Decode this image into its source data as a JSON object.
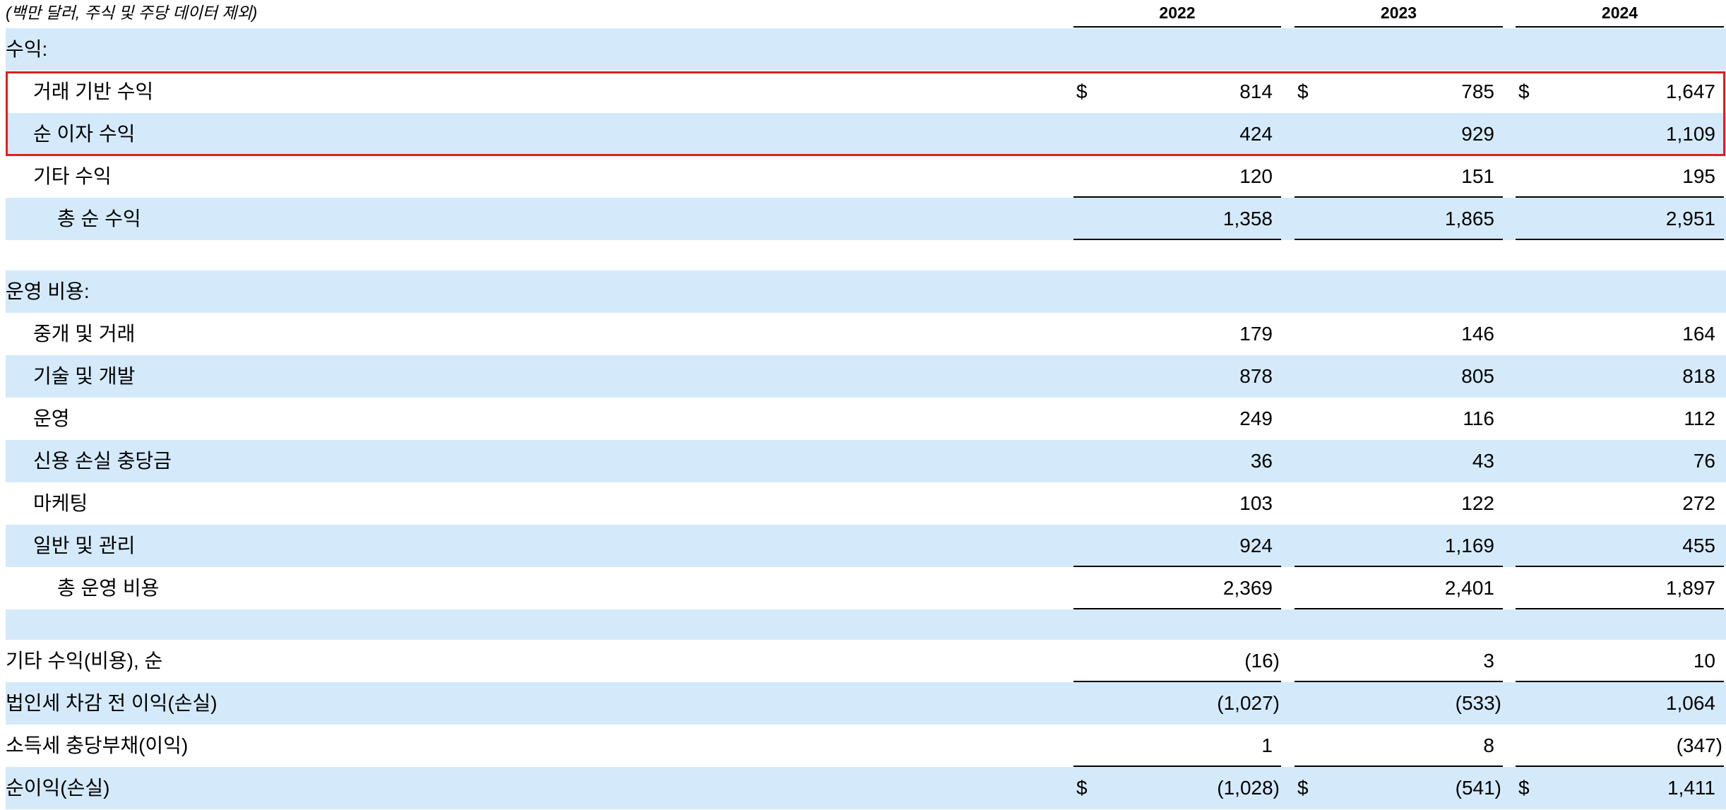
{
  "header": {
    "note": "(백만 달러, 주식 및 주당 데이터 제외)",
    "years": [
      "2022",
      "2023",
      "2024"
    ]
  },
  "rows": [
    {
      "label": "수익:"
    },
    {
      "label": "거래 기반 수익",
      "currency": "$",
      "values": [
        "814",
        "785",
        "1,647"
      ]
    },
    {
      "label": "순 이자 수익",
      "values": [
        "424",
        "929",
        "1,109"
      ]
    },
    {
      "label": "기타 수익",
      "values": [
        "120",
        "151",
        "195"
      ]
    },
    {
      "label": "총 순 수익",
      "values": [
        "1,358",
        "1,865",
        "2,951"
      ]
    },
    {
      "label": "운영 비용:"
    },
    {
      "label": "중개 및 거래",
      "values": [
        "179",
        "146",
        "164"
      ]
    },
    {
      "label": "기술 및 개발",
      "values": [
        "878",
        "805",
        "818"
      ]
    },
    {
      "label": "운영",
      "values": [
        "249",
        "116",
        "112"
      ]
    },
    {
      "label": "신용 손실 충당금",
      "values": [
        "36",
        "43",
        "76"
      ]
    },
    {
      "label": "마케팅",
      "values": [
        "103",
        "122",
        "272"
      ]
    },
    {
      "label": "일반 및 관리",
      "values": [
        "924",
        "1,169",
        "455"
      ]
    },
    {
      "label": "총 운영 비용",
      "values": [
        "2,369",
        "2,401",
        "1,897"
      ]
    },
    {
      "label": "기타 수익(비용), 순",
      "values": [
        "(16)",
        "3",
        "10"
      ]
    },
    {
      "label": "법인세 차감 전 이익(손실)",
      "values": [
        "(1,027)",
        "(533)",
        "1,064"
      ]
    },
    {
      "label": "소득세 충당부채(이익)",
      "values": [
        "1",
        "8",
        "(347)"
      ]
    },
    {
      "label": "순이익(손실)",
      "currency": "$",
      "values": [
        "(1,028)",
        "(541)",
        "1,411"
      ]
    }
  ]
}
